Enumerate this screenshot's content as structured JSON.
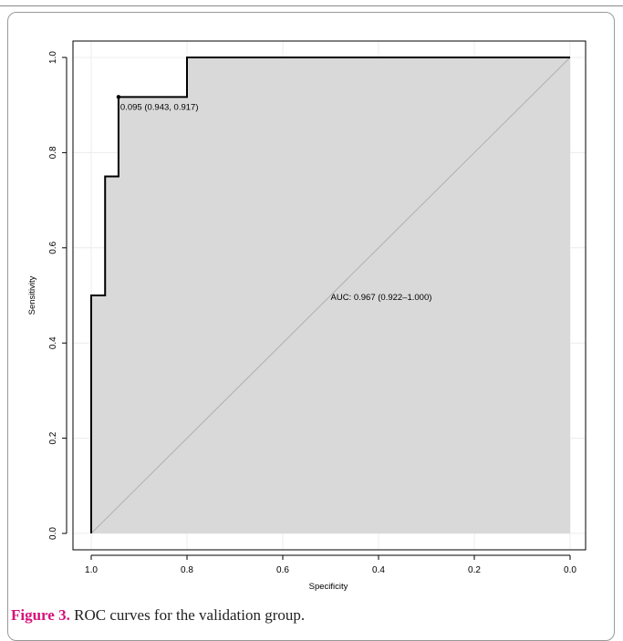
{
  "chart_data": {
    "type": "line",
    "title": "",
    "xlabel": "Specificity",
    "ylabel": "Sensitivity",
    "x_reversed": true,
    "xlim": [
      1.0,
      0.0
    ],
    "ylim": [
      0.0,
      1.0
    ],
    "x_ticks": [
      "1.0",
      "0.8",
      "0.6",
      "0.4",
      "0.2",
      "0.0"
    ],
    "y_ticks": [
      "0.0",
      "0.2",
      "0.4",
      "0.6",
      "0.8",
      "1.0"
    ],
    "grid": true,
    "auc_filled": true,
    "series": [
      {
        "points": [
          {
            "specificity": 1.0,
            "sensitivity": 0.0
          },
          {
            "specificity": 1.0,
            "sensitivity": 0.5
          },
          {
            "specificity": 0.971,
            "sensitivity": 0.5
          },
          {
            "specificity": 0.971,
            "sensitivity": 0.75
          },
          {
            "specificity": 0.943,
            "sensitivity": 0.75
          },
          {
            "specificity": 0.943,
            "sensitivity": 0.917
          },
          {
            "specificity": 0.8,
            "sensitivity": 0.917
          },
          {
            "specificity": 0.8,
            "sensitivity": 1.0
          },
          {
            "specificity": 0.0,
            "sensitivity": 1.0
          }
        ]
      }
    ],
    "threshold_point": {
      "specificity": 0.943,
      "sensitivity": 0.917,
      "label": "0.095 (0.943, 0.917)"
    },
    "auc_annotation": {
      "text": "AUC: 0.967 (0.922–1.000)",
      "specificity": 0.5,
      "sensitivity": 0.49
    }
  },
  "caption": {
    "label": "Figure 3.",
    "text": " ROC curves for the validation group."
  }
}
